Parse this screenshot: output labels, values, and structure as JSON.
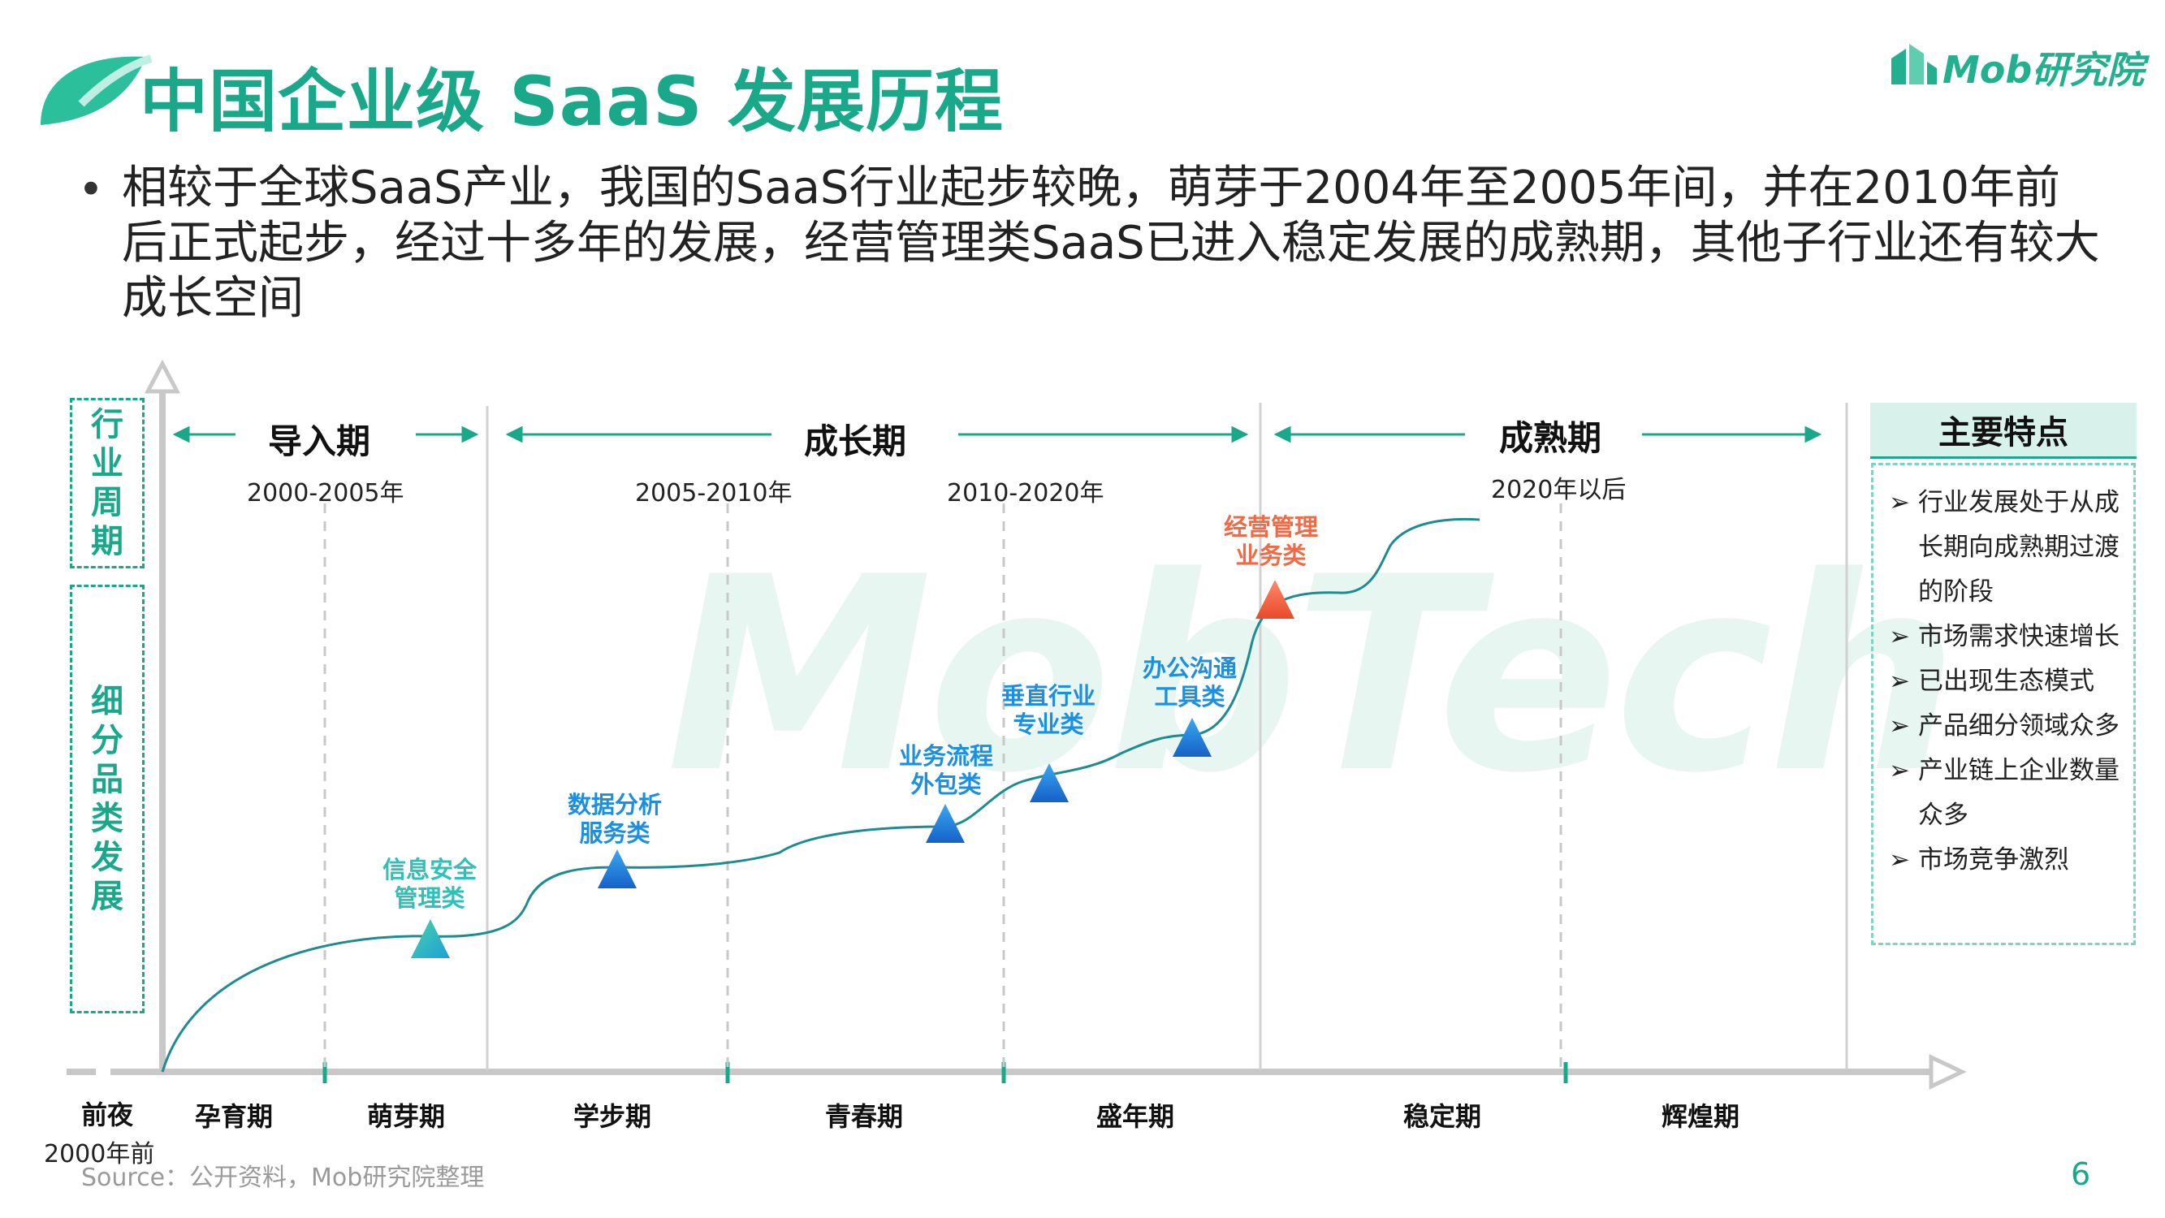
{
  "header": {
    "title": "中国企业级 SaaS 发展历程",
    "logo_text": "Mob研究院",
    "accent_color": "#19a88a"
  },
  "bullet": {
    "text": "相较于全球SaaS产业，我国的SaaS行业起步较晚，萌芽于2004年至2005年间，并在2010年前后正式起步，经过十多年的发展，经营管理类SaaS已进入稳定发展的成熟期，其他子行业还有较大成长空间"
  },
  "watermark": "MobTech",
  "axis_labels": {
    "industry_cycle": "行业周期",
    "category_dev": "细分品类发展"
  },
  "phases": [
    {
      "name": "导入期"
    },
    {
      "name": "成长期"
    },
    {
      "name": "成熟期"
    }
  ],
  "years": [
    "2000-2005年",
    "2005-2010年",
    "2010-2020年",
    "2020年以后"
  ],
  "stages": [
    "前夜",
    "孕育期",
    "萌芽期",
    "学步期",
    "青春期",
    "盛年期",
    "稳定期",
    "辉煌期"
  ],
  "stage_note": "2000年前",
  "categories": [
    {
      "label": "信息安全\n管理类",
      "color": "#2fc0b8"
    },
    {
      "label": "数据分析\n服务类",
      "color": "#1d8fe0"
    },
    {
      "label": "业务流程\n外包类",
      "color": "#1d8fe0"
    },
    {
      "label": "垂直行业\n专业类",
      "color": "#1d8fe0"
    },
    {
      "label": "办公沟通\n工具类",
      "color": "#1d8fe0"
    },
    {
      "label": "经营管理\n业务类",
      "color": "#f06a45"
    }
  ],
  "features": {
    "title": "主要特点",
    "items": [
      "行业发展处于从成长期向成熟期过渡的阶段",
      "市场需求快速增长",
      "已出现生态模式",
      "产品细分领域众多",
      "产业链上企业数量众多",
      "市场竞争激烈"
    ]
  },
  "footer": {
    "source": "Source：公开资料，Mob研究院整理",
    "page": "6"
  }
}
